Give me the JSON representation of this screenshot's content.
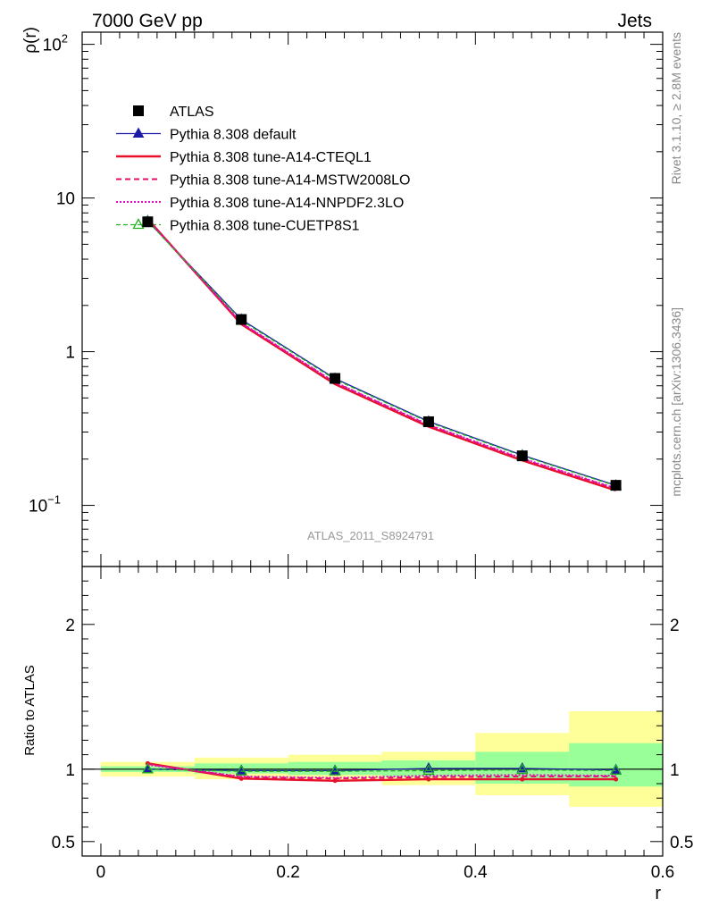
{
  "header": {
    "left_title": "7000 GeV pp",
    "right_title": "Jets",
    "watermark": "ATLAS_2011_S8924791",
    "side_label_1": "Rivet 3.1.10, ≥ 2.8M events",
    "side_label_2": "mcplots.cern.ch [arXiv:1306.3436]"
  },
  "chart_data": [
    {
      "type": "line",
      "ylabel": "ρ(r)",
      "log_y": true,
      "ylim": [
        0.04,
        120
      ],
      "xlim": [
        -0.02,
        0.6
      ],
      "y_ticks": [
        {
          "value": 0.1,
          "base": "10",
          "exp": "−1"
        },
        {
          "value": 1,
          "base": "1",
          "exp": ""
        },
        {
          "value": 10,
          "base": "10",
          "exp": ""
        },
        {
          "value": 100,
          "base": "10",
          "exp": "2"
        }
      ],
      "x": [
        0.05,
        0.15,
        0.25,
        0.35,
        0.45,
        0.55
      ],
      "data": {
        "name": "ATLAS",
        "values": [
          7.0,
          1.62,
          0.67,
          0.35,
          0.21,
          0.135
        ]
      },
      "series": [
        {
          "name": "Pythia 8.308 default",
          "color": "#1a1aa6",
          "style": "solid",
          "marker": "triangle-filled",
          "values": [
            7.1,
            1.62,
            0.668,
            0.352,
            0.212,
            0.135
          ]
        },
        {
          "name": "Pythia 8.308 tune-A14-CTEQL1",
          "color": "#e8102a",
          "style": "solid-thick",
          "marker": "none",
          "values": [
            7.3,
            1.51,
            0.615,
            0.325,
            0.196,
            0.125
          ]
        },
        {
          "name": "Pythia 8.308 tune-A14-MSTW2008LO",
          "color": "#e0106a",
          "style": "dashed",
          "marker": "none",
          "values": [
            7.25,
            1.53,
            0.628,
            0.332,
            0.2,
            0.128
          ]
        },
        {
          "name": "Pythia 8.308 tune-A14-NNPDF2.3LO",
          "color": "#e010c0",
          "style": "dotted",
          "marker": "none",
          "values": [
            7.2,
            1.54,
            0.632,
            0.335,
            0.202,
            0.129
          ]
        },
        {
          "name": "Pythia 8.308 tune-CUETP8S1",
          "color": "#20b020",
          "style": "dashed-thin",
          "marker": "triangle-open",
          "values": [
            7.05,
            1.6,
            0.66,
            0.348,
            0.21,
            0.134
          ]
        }
      ]
    },
    {
      "type": "line",
      "ylabel": "Ratio to ATLAS",
      "xlabel": "r",
      "ylim": [
        0.4,
        2.4
      ],
      "xlim": [
        -0.02,
        0.6
      ],
      "y_ticks": [
        0.5,
        1,
        2
      ],
      "x_ticks": [
        0,
        0.2,
        0.4,
        0.6
      ],
      "x_tick_labels": [
        "0",
        "0.2",
        "0.4",
        "0.6"
      ],
      "bins": [
        [
          0.0,
          0.1
        ],
        [
          0.1,
          0.2
        ],
        [
          0.2,
          0.3
        ],
        [
          0.3,
          0.4
        ],
        [
          0.4,
          0.5
        ],
        [
          0.5,
          0.6
        ]
      ],
      "band_total": [
        [
          0.95,
          1.05
        ],
        [
          0.93,
          1.08
        ],
        [
          0.92,
          1.1
        ],
        [
          0.89,
          1.12
        ],
        [
          0.82,
          1.25
        ],
        [
          0.74,
          1.4
        ]
      ],
      "band_stat": [
        [
          0.98,
          1.02
        ],
        [
          0.97,
          1.04
        ],
        [
          0.96,
          1.05
        ],
        [
          0.95,
          1.06
        ],
        [
          0.9,
          1.12
        ],
        [
          0.88,
          1.18
        ]
      ],
      "ratio_series": [
        {
          "name": "Pythia 8.308 default",
          "color": "#1a1aa6",
          "style": "solid",
          "marker": "triangle-filled",
          "values": [
            1.0,
            0.99,
            0.99,
            1.005,
            1.005,
            0.995
          ]
        },
        {
          "name": "Pythia 8.308 tune-A14-CTEQL1",
          "color": "#e8102a",
          "style": "solid-thick",
          "marker": "dot",
          "values": [
            1.04,
            0.935,
            0.92,
            0.93,
            0.93,
            0.93
          ]
        },
        {
          "name": "Pythia 8.308 tune-A14-MSTW2008LO",
          "color": "#e0106a",
          "style": "dashed",
          "marker": "none",
          "values": [
            1.035,
            0.945,
            0.935,
            0.945,
            0.95,
            0.95
          ]
        },
        {
          "name": "Pythia 8.308 tune-A14-NNPDF2.3LO",
          "color": "#e010c0",
          "style": "dotted",
          "marker": "none",
          "values": [
            1.03,
            0.95,
            0.94,
            0.955,
            0.96,
            0.955
          ]
        },
        {
          "name": "Pythia 8.308 tune-CUETP8S1",
          "color": "#20b020",
          "style": "dashed-thin",
          "marker": "triangle-open",
          "values": [
            1.0,
            0.985,
            0.985,
            0.99,
            0.995,
            0.99
          ]
        }
      ]
    }
  ]
}
